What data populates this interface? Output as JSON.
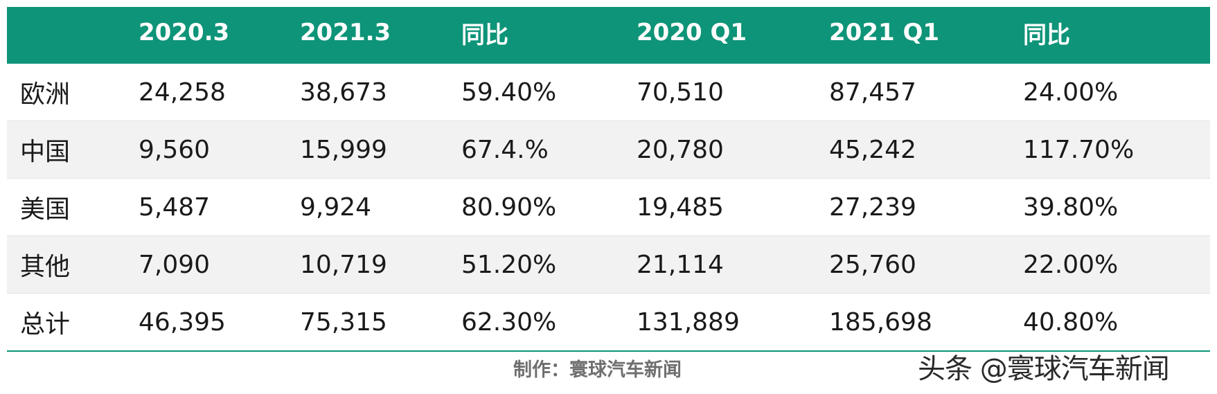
{
  "table": {
    "headers": [
      "",
      "2020.3",
      "2021.3",
      "同比",
      "2020 Q1",
      "2021 Q1",
      "同比"
    ],
    "rows": [
      [
        "欧洲",
        "24,258",
        "38,673",
        "59.40%",
        "70,510",
        "87,457",
        "24.00%"
      ],
      [
        "中国",
        "9,560",
        "15,999",
        "67.4.%",
        "20,780",
        "45,242",
        "117.70%"
      ],
      [
        "美国",
        "5,487",
        "9,924",
        "80.90%",
        "19,485",
        "27,239",
        "39.80%"
      ],
      [
        "其他",
        "7,090",
        "10,719",
        "51.20%",
        "21,114",
        "25,760",
        "22.00%"
      ],
      [
        "总计",
        "46,395",
        "75,315",
        "62.30%",
        "131,889",
        "185,698",
        "40.80%"
      ]
    ]
  },
  "credit": "制作：寰球汽车新闻",
  "watermark": "头条 @寰球汽车新闻",
  "colors": {
    "header_bg": "#0e9478",
    "header_text": "#ffffff",
    "alt_row_bg": "#f2f2f2",
    "bottom_rule": "#0e9478",
    "credit_text": "#6f6f6f"
  }
}
